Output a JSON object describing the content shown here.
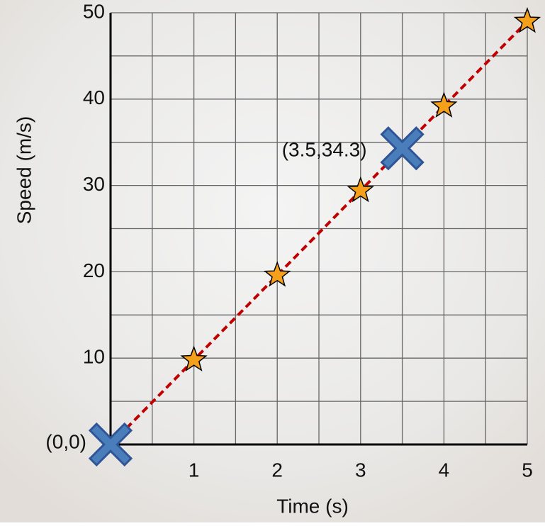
{
  "chart_data": {
    "type": "line",
    "x_label": "Time (s)",
    "y_label": "Speed (m/s)",
    "xlim": [
      0,
      5
    ],
    "ylim": [
      0,
      50
    ],
    "xticks": [
      1,
      2,
      3,
      4,
      5
    ],
    "yticks": [
      10,
      20,
      30,
      40,
      50
    ],
    "grid": true,
    "minor_grid": true,
    "series": [
      {
        "x": [
          0,
          5
        ],
        "values": [
          0,
          49
        ],
        "color": "#c00000",
        "style": "dashed"
      },
      {
        "x": [
          1,
          2,
          3,
          4,
          5
        ],
        "values": [
          9.8,
          19.6,
          29.4,
          39.2,
          49
        ],
        "color": "#f5a01a",
        "marker": "star"
      },
      {
        "x": [
          0,
          3.5
        ],
        "values": [
          0,
          34.3
        ],
        "color": "#4a7ebb",
        "marker": "cross",
        "value_labels": [
          "(0,0)",
          "(3.5,34.3)"
        ]
      }
    ]
  }
}
